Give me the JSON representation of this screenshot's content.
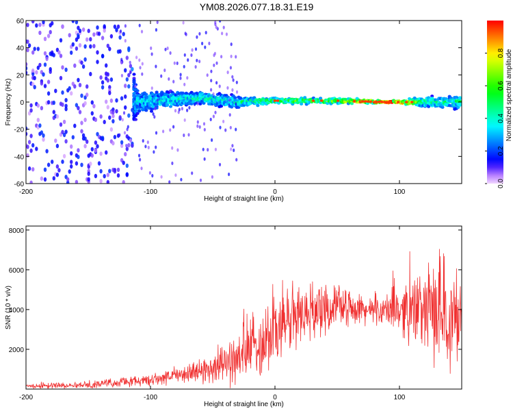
{
  "title": "YM08.2026.077.18.31.E19",
  "chart_data": [
    {
      "type": "heatmap",
      "name": "spectrogram",
      "xlabel": "Height of straight line (km)",
      "ylabel": "Frequency (Hz)",
      "xlim": [
        -200,
        150
      ],
      "ylim": [
        -60,
        60
      ],
      "xticks": [
        -200,
        -100,
        0,
        100
      ],
      "yticks": [
        -60,
        -40,
        -20,
        0,
        20,
        40,
        60
      ],
      "colorbar": {
        "label": "Normalized spectral amplitude",
        "range": [
          0.0,
          1.0
        ],
        "ticks": [
          "0.0",
          "0.2",
          "0.4",
          "0.6",
          "0.8"
        ],
        "tick_values": [
          0.0,
          0.2,
          0.4,
          0.6,
          0.8
        ]
      },
      "band": {
        "description_points": [
          {
            "x": -200,
            "center_freq": 0,
            "halfwidth": 60,
            "amplitude": 0.12
          },
          {
            "x": -120,
            "center_freq": 0,
            "halfwidth": 60,
            "amplitude": 0.12
          },
          {
            "x": -110,
            "center_freq": 0,
            "halfwidth": 10,
            "amplitude": 0.3
          },
          {
            "x": -60,
            "center_freq": 3,
            "halfwidth": 6,
            "amplitude": 0.35
          },
          {
            "x": -30,
            "center_freq": 0,
            "halfwidth": 6,
            "amplitude": 0.35
          },
          {
            "x": 0,
            "center_freq": 1,
            "halfwidth": 3,
            "amplitude": 0.45
          },
          {
            "x": 50,
            "center_freq": 1,
            "halfwidth": 3,
            "amplitude": 0.55
          },
          {
            "x": 90,
            "center_freq": 0,
            "halfwidth": 1,
            "amplitude": 0.97
          },
          {
            "x": 120,
            "center_freq": 0,
            "halfwidth": 5,
            "amplitude": 0.4
          },
          {
            "x": 150,
            "center_freq": 0,
            "halfwidth": 6,
            "amplitude": 0.4
          }
        ]
      }
    },
    {
      "type": "line",
      "name": "snr",
      "xlabel": "Height of straight line (km)",
      "ylabel": "SNR (10 * v/v)",
      "xlim": [
        -200,
        150
      ],
      "ylim": [
        0,
        8200
      ],
      "xticks": [
        -200,
        -100,
        0,
        100
      ],
      "yticks": [
        2000,
        4000,
        6000,
        8000
      ],
      "color": "#f03030",
      "series": [
        {
          "name": "SNR",
          "envelope": [
            {
              "x": -200,
              "mean": 150,
              "spread": 150
            },
            {
              "x": -150,
              "mean": 220,
              "spread": 200
            },
            {
              "x": -100,
              "mean": 450,
              "spread": 350
            },
            {
              "x": -60,
              "mean": 900,
              "spread": 700
            },
            {
              "x": -30,
              "mean": 1500,
              "spread": 1600
            },
            {
              "x": 0,
              "mean": 3000,
              "spread": 2600
            },
            {
              "x": 20,
              "mean": 3800,
              "spread": 2000
            },
            {
              "x": 50,
              "mean": 4200,
              "spread": 1200
            },
            {
              "x": 80,
              "mean": 3900,
              "spread": 700
            },
            {
              "x": 100,
              "mean": 4000,
              "spread": 1500
            },
            {
              "x": 130,
              "mean": 4000,
              "spread": 3200
            },
            {
              "x": 150,
              "mean": 3500,
              "spread": 3200
            }
          ]
        }
      ]
    }
  ]
}
